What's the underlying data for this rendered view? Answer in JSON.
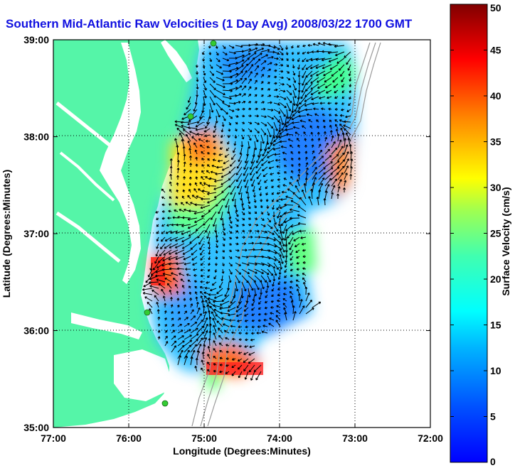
{
  "title": "Southern Mid-Atlantic Raw Velocities (1 Day Avg) 2008/03/22 1700 GMT",
  "x_axis": {
    "label": "Longitude (Degrees:Minutes)",
    "ticks": [
      {
        "text": "77:00",
        "value": -77
      },
      {
        "text": "76:00",
        "value": -76
      },
      {
        "text": "75:00",
        "value": -75
      },
      {
        "text": "74:00",
        "value": -74
      },
      {
        "text": "73:00",
        "value": -73
      },
      {
        "text": "72:00",
        "value": -72
      }
    ]
  },
  "y_axis": {
    "label": "Latitude (Degrees:Minutes)",
    "ticks": [
      {
        "text": "39:00",
        "value": 39
      },
      {
        "text": "38:00",
        "value": 38
      },
      {
        "text": "37:00",
        "value": 37
      },
      {
        "text": "36:00",
        "value": 36
      },
      {
        "text": "35:00",
        "value": 35
      }
    ]
  },
  "colorbar": {
    "label": "Surface Velocity (cm/s)",
    "range": [
      0,
      50
    ],
    "ticks": [
      "0",
      "5",
      "10",
      "15",
      "20",
      "25",
      "30",
      "35",
      "40",
      "45",
      "50"
    ],
    "colormap": "jet"
  },
  "colors": {
    "land": "#55f5a8",
    "water": "#ffffff",
    "vectors": "#000000",
    "stations": "#33cc33",
    "bathymetry": "#999999"
  },
  "stations_icon": "hf-radar-site-marker",
  "vector_icon": "current-arrow"
}
